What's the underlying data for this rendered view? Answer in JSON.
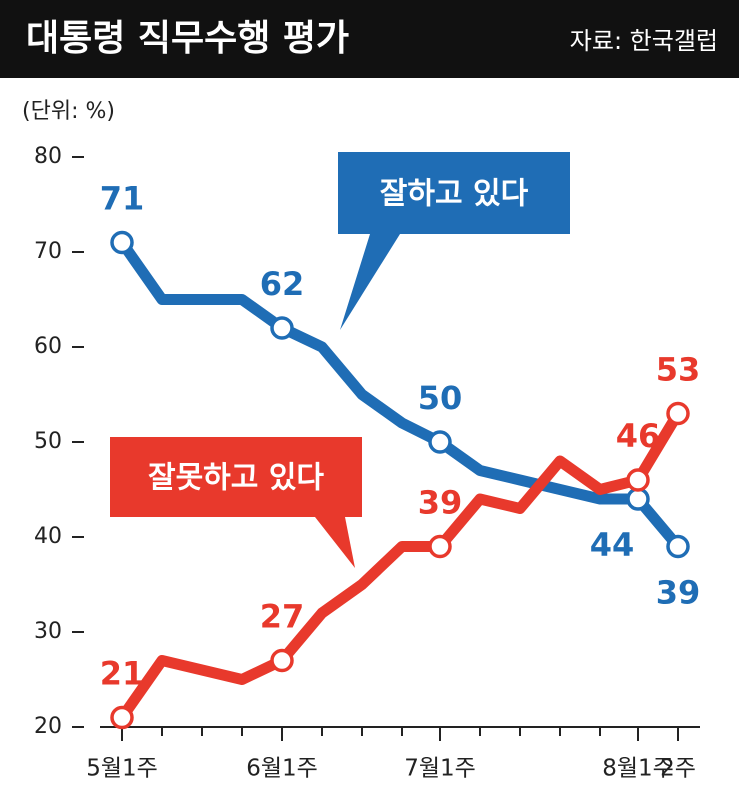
{
  "chart_data": {
    "type": "line",
    "title": "대통령 직무수행 평가",
    "source": "자료: 한국갤럽",
    "unit_label": "(단위: %)",
    "categories": [
      "5월1주",
      null,
      null,
      null,
      "6월1주",
      null,
      null,
      null,
      "7월1주",
      null,
      null,
      null,
      null,
      "8월1주",
      "2주"
    ],
    "series": [
      {
        "name": "잘하고 있다",
        "color": "#1f6db5",
        "values": [
          71,
          65,
          65,
          65,
          62,
          60,
          55,
          52,
          50,
          47,
          46,
          45,
          44,
          44,
          39
        ],
        "value_labels": [
          "71",
          null,
          null,
          null,
          "62",
          null,
          null,
          null,
          "50",
          null,
          null,
          null,
          null,
          "44",
          "39"
        ]
      },
      {
        "name": "잘못하고 있다",
        "color": "#e8392c",
        "values": [
          21,
          27,
          26,
          25,
          27,
          32,
          35,
          39,
          39,
          44,
          43,
          48,
          45,
          46,
          53
        ],
        "value_labels": [
          "21",
          null,
          null,
          null,
          "27",
          null,
          null,
          null,
          "39",
          null,
          null,
          null,
          null,
          "46",
          "53"
        ]
      }
    ],
    "ylim": [
      20,
      80
    ],
    "yticks": [
      20,
      30,
      40,
      50,
      60,
      70,
      80
    ]
  }
}
